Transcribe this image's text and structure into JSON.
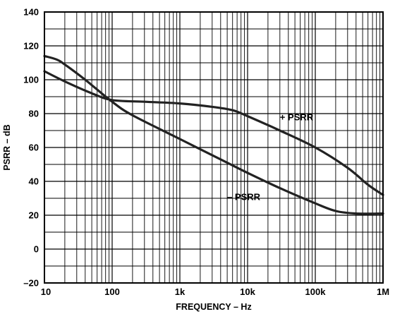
{
  "chart_data": {
    "type": "line",
    "title": "",
    "xlabel": "FREQUENCY – Hz",
    "ylabel": "PSRR – dB",
    "x_scale": "log",
    "xlim": [
      10,
      1000000
    ],
    "ylim": [
      -20,
      140
    ],
    "x_ticks": [
      {
        "value": 10,
        "label": "10"
      },
      {
        "value": 100,
        "label": "100"
      },
      {
        "value": 1000,
        "label": "1k"
      },
      {
        "value": 10000,
        "label": "10k"
      },
      {
        "value": 100000,
        "label": "100k"
      },
      {
        "value": 1000000,
        "label": "1M"
      }
    ],
    "y_ticks": [
      {
        "value": 140,
        "label": "140"
      },
      {
        "value": 120,
        "label": "120"
      },
      {
        "value": 100,
        "label": "100"
      },
      {
        "value": 80,
        "label": "80"
      },
      {
        "value": 60,
        "label": "60"
      },
      {
        "value": 40,
        "label": "40"
      },
      {
        "value": 20,
        "label": "20"
      },
      {
        "value": 0,
        "label": "0"
      },
      {
        "value": -20,
        "label": "–20"
      }
    ],
    "grid": true,
    "series": [
      {
        "name": "+ PSRR",
        "label": "+ PSRR",
        "points": [
          {
            "x": 10,
            "y": 105
          },
          {
            "x": 20,
            "y": 99
          },
          {
            "x": 50,
            "y": 92
          },
          {
            "x": 100,
            "y": 88
          },
          {
            "x": 300,
            "y": 87
          },
          {
            "x": 1000,
            "y": 86
          },
          {
            "x": 3000,
            "y": 84
          },
          {
            "x": 6000,
            "y": 82
          },
          {
            "x": 10000,
            "y": 78.5
          },
          {
            "x": 30000,
            "y": 70
          },
          {
            "x": 100000,
            "y": 60
          },
          {
            "x": 300000,
            "y": 48
          },
          {
            "x": 600000,
            "y": 38
          },
          {
            "x": 1000000,
            "y": 32
          }
        ]
      },
      {
        "name": "– PSRR",
        "label": "– PSRR",
        "points": [
          {
            "x": 10,
            "y": 114
          },
          {
            "x": 15,
            "y": 112
          },
          {
            "x": 20,
            "y": 109
          },
          {
            "x": 40,
            "y": 100
          },
          {
            "x": 100,
            "y": 87
          },
          {
            "x": 200,
            "y": 79
          },
          {
            "x": 1000,
            "y": 65
          },
          {
            "x": 5000,
            "y": 51
          },
          {
            "x": 10000,
            "y": 45
          },
          {
            "x": 30000,
            "y": 36
          },
          {
            "x": 100000,
            "y": 27
          },
          {
            "x": 200000,
            "y": 22.5
          },
          {
            "x": 400000,
            "y": 21
          },
          {
            "x": 1000000,
            "y": 21
          }
        ]
      }
    ],
    "annotations": [
      {
        "series": "+ PSRR",
        "x": 30000,
        "y": 76
      },
      {
        "series": "– PSRR",
        "x": 5000,
        "y": 29
      }
    ]
  },
  "colors": {
    "background": "#ffffff",
    "grid": "#000000",
    "curve": "#222222"
  }
}
